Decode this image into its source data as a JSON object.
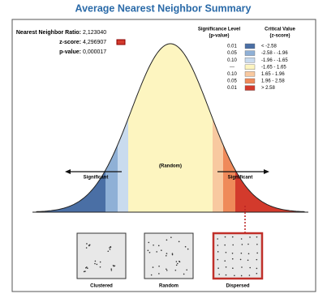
{
  "header": {
    "title": "Average Nearest Neighbor Summary"
  },
  "stats": [
    {
      "label": "Nearest Neighbor Ratio:",
      "value": "2,123040"
    },
    {
      "label": "z-score:",
      "value": "4,296907"
    },
    {
      "label": "p-value:",
      "value": "0,000017"
    }
  ],
  "legend": {
    "p_header": [
      "Significance Level",
      "(p-value)"
    ],
    "z_header": [
      "Critical Value",
      "(z-score)"
    ],
    "rows": [
      {
        "p": "0.01",
        "z": "< -2.58",
        "color": "#4a6fa5"
      },
      {
        "p": "0.05",
        "z": "-2.58 - -1.96",
        "color": "#8fb0d6"
      },
      {
        "p": "0.10",
        "z": "-1.96 - -1.65",
        "color": "#c9dbee"
      },
      {
        "p": "---",
        "z": "-1.65 - 1.65",
        "color": "#fdf5c0"
      },
      {
        "p": "0.10",
        "z": "1.65 - 1.96",
        "color": "#f8c9a0"
      },
      {
        "p": "0.05",
        "z": "1.96 - 2.58",
        "color": "#ef8a5a"
      },
      {
        "p": "0.01",
        "z": "> 2.58",
        "color": "#d33a2c"
      }
    ]
  },
  "curve": {
    "center": "(Random)",
    "left": "Significant",
    "right": "Significant"
  },
  "patterns": [
    "Clustered",
    "Random",
    "Dispersed"
  ]
}
